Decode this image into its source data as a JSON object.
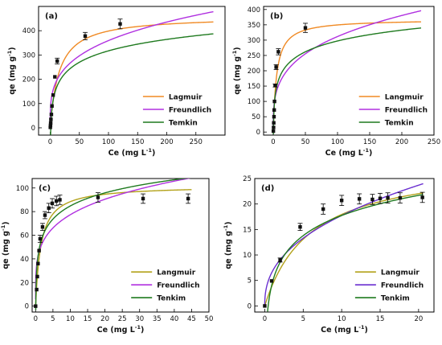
{
  "chart_data": [
    {
      "panel": "(a)",
      "type": "scatter",
      "xlabel": "Ce (mg L⁻¹)",
      "ylabel": "qe (mg g⁻¹)",
      "xlim": [
        -20,
        300
      ],
      "ylim": [
        -30,
        500
      ],
      "xticks": [
        0,
        50,
        100,
        150,
        200,
        250
      ],
      "yticks": [
        0,
        100,
        200,
        300,
        400
      ],
      "legend_position": "bottom-right",
      "points": [
        {
          "x": 0.2,
          "y": 2,
          "err": 0
        },
        {
          "x": 0.5,
          "y": 10,
          "err": 0
        },
        {
          "x": 0.8,
          "y": 20,
          "err": 0
        },
        {
          "x": 1.2,
          "y": 35,
          "err": 0
        },
        {
          "x": 2,
          "y": 55,
          "err": 0
        },
        {
          "x": 3,
          "y": 90,
          "err": 0
        },
        {
          "x": 5,
          "y": 135,
          "err": 0
        },
        {
          "x": 8,
          "y": 210,
          "err": 0
        },
        {
          "x": 12,
          "y": 275,
          "err": 12
        },
        {
          "x": 60,
          "y": 378,
          "err": 15
        },
        {
          "x": 120,
          "y": 428,
          "err": 20
        }
      ],
      "series": [
        {
          "name": "Lagmuir",
          "model": "langmuir",
          "params": {
            "qm": 460,
            "K": 0.065
          },
          "xmax": 280,
          "color": "#f08a24"
        },
        {
          "name": "Freundlich",
          "model": "freundlich",
          "params": {
            "K": 100,
            "n": 3.6
          },
          "xmax": 280,
          "color": "#b030e0"
        },
        {
          "name": "Temkin",
          "model": "temkin",
          "params": {
            "B": 68,
            "A": 1.06
          },
          "xmax": 280,
          "color": "#1f7a1f"
        }
      ]
    },
    {
      "panel": "(b)",
      "type": "scatter",
      "xlabel": "Ce (mg L⁻¹)",
      "ylabel": "qe (mg g⁻¹)",
      "xlim": [
        -15,
        250
      ],
      "ylim": [
        -10,
        410
      ],
      "xticks": [
        0,
        50,
        100,
        150,
        200,
        250
      ],
      "yticks": [
        0,
        50,
        100,
        150,
        200,
        250,
        300,
        350,
        400
      ],
      "legend_position": "bottom-right",
      "points": [
        {
          "x": 0.2,
          "y": 3,
          "err": 0
        },
        {
          "x": 0.5,
          "y": 15,
          "err": 0
        },
        {
          "x": 0.8,
          "y": 30,
          "err": 0
        },
        {
          "x": 1.2,
          "y": 50,
          "err": 0
        },
        {
          "x": 1.5,
          "y": 72,
          "err": 0
        },
        {
          "x": 2,
          "y": 100,
          "err": 0
        },
        {
          "x": 3,
          "y": 152,
          "err": 5
        },
        {
          "x": 4.5,
          "y": 212,
          "err": 8
        },
        {
          "x": 8,
          "y": 262,
          "err": 10
        },
        {
          "x": 50,
          "y": 340,
          "err": 15
        }
      ],
      "series": [
        {
          "name": "Langmuir",
          "model": "langmuir",
          "params": {
            "qm": 368,
            "K": 0.19
          },
          "xmax": 230,
          "color": "#f08a24"
        },
        {
          "name": "Freundlich",
          "model": "freundlich",
          "params": {
            "K": 83,
            "n": 3.48
          },
          "xmax": 230,
          "color": "#b030e0"
        },
        {
          "name": "Temkin",
          "model": "temkin",
          "params": {
            "B": 51,
            "A": 3.4
          },
          "xmax": 230,
          "color": "#1f7a1f"
        }
      ]
    },
    {
      "panel": "(c)",
      "type": "scatter",
      "xlabel": "Ce (mg L⁻¹)",
      "ylabel": "qe (mg g⁻¹)",
      "xlim": [
        -1,
        50
      ],
      "ylim": [
        -5,
        108
      ],
      "xticks": [
        0,
        5,
        10,
        15,
        20,
        25,
        30,
        35,
        40,
        45,
        50
      ],
      "yticks": [
        0,
        20,
        40,
        60,
        80,
        100
      ],
      "legend_position": "bottom-right",
      "points": [
        {
          "x": 0,
          "y": 0,
          "err": 0
        },
        {
          "x": 0.3,
          "y": 14,
          "err": 0
        },
        {
          "x": 0.5,
          "y": 25,
          "err": 0
        },
        {
          "x": 0.7,
          "y": 36,
          "err": 0
        },
        {
          "x": 1,
          "y": 47,
          "err": 0
        },
        {
          "x": 1.3,
          "y": 57,
          "err": 3
        },
        {
          "x": 2,
          "y": 67,
          "err": 3
        },
        {
          "x": 2.7,
          "y": 77,
          "err": 3
        },
        {
          "x": 3.8,
          "y": 83,
          "err": 4
        },
        {
          "x": 4.8,
          "y": 87,
          "err": 4
        },
        {
          "x": 6,
          "y": 89,
          "err": 4
        },
        {
          "x": 7,
          "y": 90,
          "err": 4
        },
        {
          "x": 18,
          "y": 92,
          "err": 4
        },
        {
          "x": 31,
          "y": 91,
          "err": 4
        },
        {
          "x": 44,
          "y": 91,
          "err": 4
        }
      ],
      "series": [
        {
          "name": "Langmuir",
          "model": "langmuir",
          "params": {
            "qm": 102,
            "K": 0.65
          },
          "xmax": 45,
          "color": "#b3a21a"
        },
        {
          "name": "Freundlich",
          "model": "freundlich",
          "params": {
            "K": 46,
            "n": 4.43
          },
          "xmax": 45,
          "color": "#b030e0"
        },
        {
          "name": "Tenkim",
          "model": "temkin",
          "params": {
            "B": 16,
            "A": 20
          },
          "xmax": 45,
          "color": "#1f7a1f"
        }
      ]
    },
    {
      "panel": "(d)",
      "type": "scatter",
      "xlabel": "Ce (mg L⁻¹)",
      "ylabel": "qe (mg g⁻¹)",
      "xlim": [
        -1.3,
        22
      ],
      "ylim": [
        -1.2,
        25
      ],
      "xticks": [
        0,
        5,
        10,
        15,
        20
      ],
      "yticks": [
        0,
        5,
        10,
        15,
        20,
        25
      ],
      "legend_position": "bottom-right",
      "points": [
        {
          "x": 0,
          "y": 0,
          "err": 0
        },
        {
          "x": 0.9,
          "y": 4.9,
          "err": 0
        },
        {
          "x": 2,
          "y": 9,
          "err": 0.4
        },
        {
          "x": 4.6,
          "y": 15.5,
          "err": 0.7
        },
        {
          "x": 7.6,
          "y": 19,
          "err": 1
        },
        {
          "x": 10,
          "y": 20.7,
          "err": 1
        },
        {
          "x": 12.3,
          "y": 21,
          "err": 1
        },
        {
          "x": 14,
          "y": 20.9,
          "err": 1
        },
        {
          "x": 15,
          "y": 21.1,
          "err": 1
        },
        {
          "x": 16,
          "y": 21.2,
          "err": 1
        },
        {
          "x": 17.6,
          "y": 21.2,
          "err": 1
        },
        {
          "x": 20.5,
          "y": 21.3,
          "err": 1
        }
      ],
      "series": [
        {
          "name": "Langmuir",
          "model": "langmuir",
          "params": {
            "qm": 28.5,
            "K": 0.17
          },
          "xmax": 20.6,
          "color": "#b3a21a"
        },
        {
          "name": "Freundlich",
          "model": "freundlich",
          "params": {
            "K": 6.8,
            "n": 2.4
          },
          "xmax": 20.6,
          "color": "#6a2fd0"
        },
        {
          "name": "Tenkim",
          "model": "temkin",
          "params": {
            "B": 5.7,
            "A": 2.25
          },
          "xmax": 20.6,
          "color": "#1f7a1f"
        }
      ]
    }
  ]
}
